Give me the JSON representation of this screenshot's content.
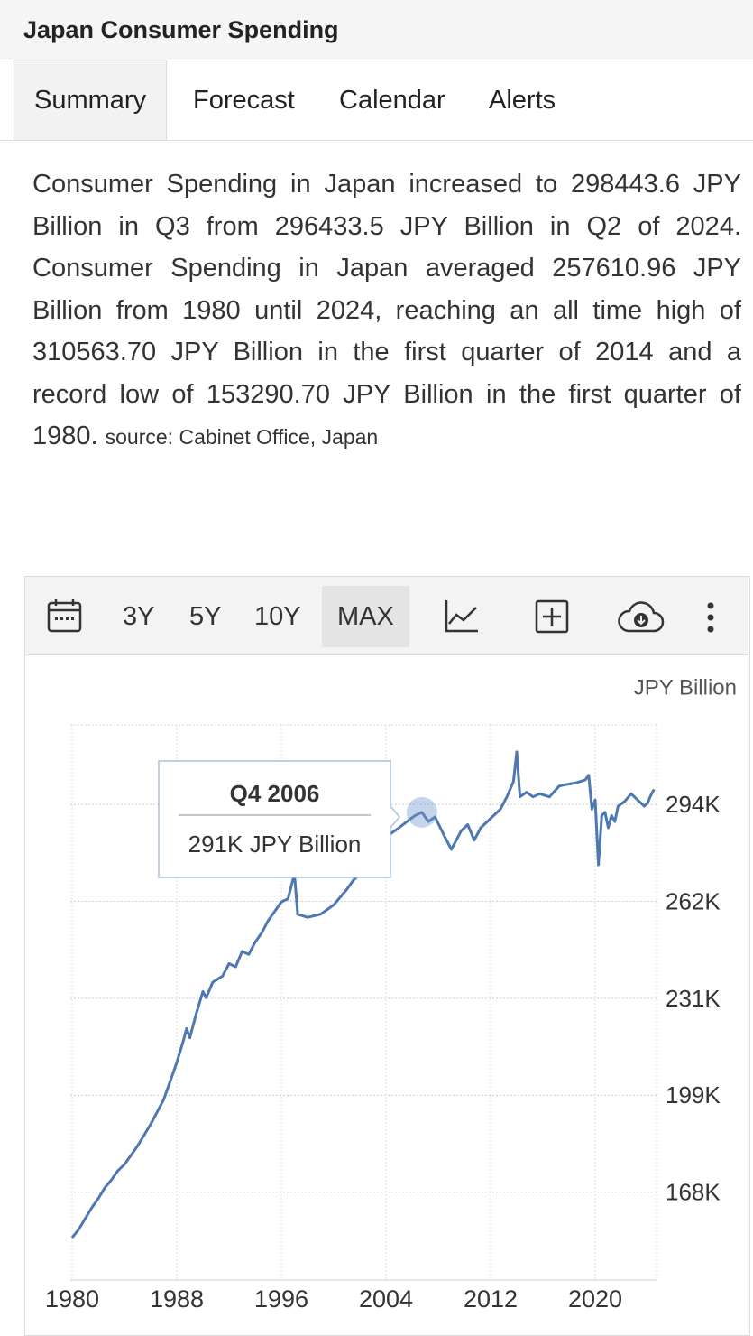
{
  "header": {
    "title": "Japan Consumer Spending"
  },
  "tabs": [
    "Summary",
    "Forecast",
    "Calendar",
    "Alerts"
  ],
  "summary": {
    "text": "Consumer Spending in Japan increased to 298443.6 JPY Billion in Q3 from 296433.5 JPY Billion in Q2 of 2024. Consumer Spending in Japan averaged 257610.96 JPY Billion from 1980 until 2024, reaching an all time high of 310563.70 JPY Billion in the first quarter of 2014 and a record low of 153290.70 JPY Billion in the first quarter of 1980.",
    "source": "source: Cabinet Office, Japan"
  },
  "toolbar": {
    "ranges": [
      "3Y",
      "5Y",
      "10Y",
      "MAX"
    ]
  },
  "chart_data": {
    "type": "line",
    "y_label": "JPY Billion",
    "color": "#4f78b0",
    "grid": true,
    "x": [
      1980,
      1980.5,
      1981,
      1981.5,
      1982,
      1982.5,
      1983,
      1983.5,
      1984,
      1984.5,
      1985,
      1985.5,
      1986,
      1986.5,
      1987,
      1987.5,
      1988,
      1988.5,
      1988.75,
      1989,
      1989.5,
      1990,
      1990.25,
      1990.75,
      1991.5,
      1992,
      1992.5,
      1993,
      1993.5,
      1994,
      1994.5,
      1995,
      1995.5,
      1996,
      1996.5,
      1997,
      1997.25,
      1998,
      1999,
      2000,
      2001,
      2001.5,
      2002,
      2003,
      2004,
      2005,
      2005.75,
      2006.25,
      2006.75,
      2007.25,
      2007.75,
      2008.5,
      2009,
      2009.75,
      2010.25,
      2010.75,
      2011.25,
      2011.75,
      2012.25,
      2012.75,
      2013.25,
      2013.75,
      2014,
      2014.25,
      2014.75,
      2015.25,
      2015.75,
      2016.5,
      2017.25,
      2017.75,
      2018.5,
      2019.25,
      2019.5,
      2019.75,
      2020,
      2020.25,
      2020.5,
      2020.75,
      2021,
      2021.25,
      2021.5,
      2021.75,
      2022.25,
      2022.75,
      2023.25,
      2023.75,
      2024,
      2024.25,
      2024.5
    ],
    "values": [
      153290.7,
      156000,
      159500,
      163000,
      166000,
      169500,
      172000,
      175000,
      177000,
      180000,
      183000,
      186500,
      190000,
      194000,
      198000,
      204000,
      210000,
      217000,
      221000,
      218000,
      226000,
      233000,
      231000,
      236000,
      238000,
      242000,
      241000,
      246000,
      245000,
      249000,
      252000,
      256000,
      259000,
      262000,
      263000,
      271000,
      258000,
      257000,
      258000,
      261000,
      266000,
      269000,
      271000,
      277000,
      283000,
      286000,
      288500,
      290000,
      291000,
      288000,
      289500,
      283000,
      279000,
      285000,
      287000,
      282000,
      286000,
      288000,
      290000,
      292000,
      296000,
      301000,
      310563.7,
      296000,
      297500,
      296000,
      297000,
      296000,
      299500,
      300000,
      300500,
      301500,
      303000,
      292000,
      295000,
      274000,
      290000,
      291000,
      286000,
      290000,
      288000,
      293000,
      294500,
      297000,
      295000,
      293000,
      294000,
      296433.5,
      298443.6
    ],
    "xlim": [
      1980,
      2025
    ],
    "xticks": [
      1980,
      1988,
      1996,
      2004,
      2012,
      2020
    ],
    "ylim": [
      139600,
      319300
    ],
    "yticks": [
      {
        "value": 168000,
        "label": "168K"
      },
      {
        "value": 199400,
        "label": "199K"
      },
      {
        "value": 230800,
        "label": "231K"
      },
      {
        "value": 262200,
        "label": "262K"
      },
      {
        "value": 293600,
        "label": "294K"
      }
    ],
    "tooltip": {
      "title": "Q4 2006",
      "text": "291K JPY Billion"
    }
  }
}
